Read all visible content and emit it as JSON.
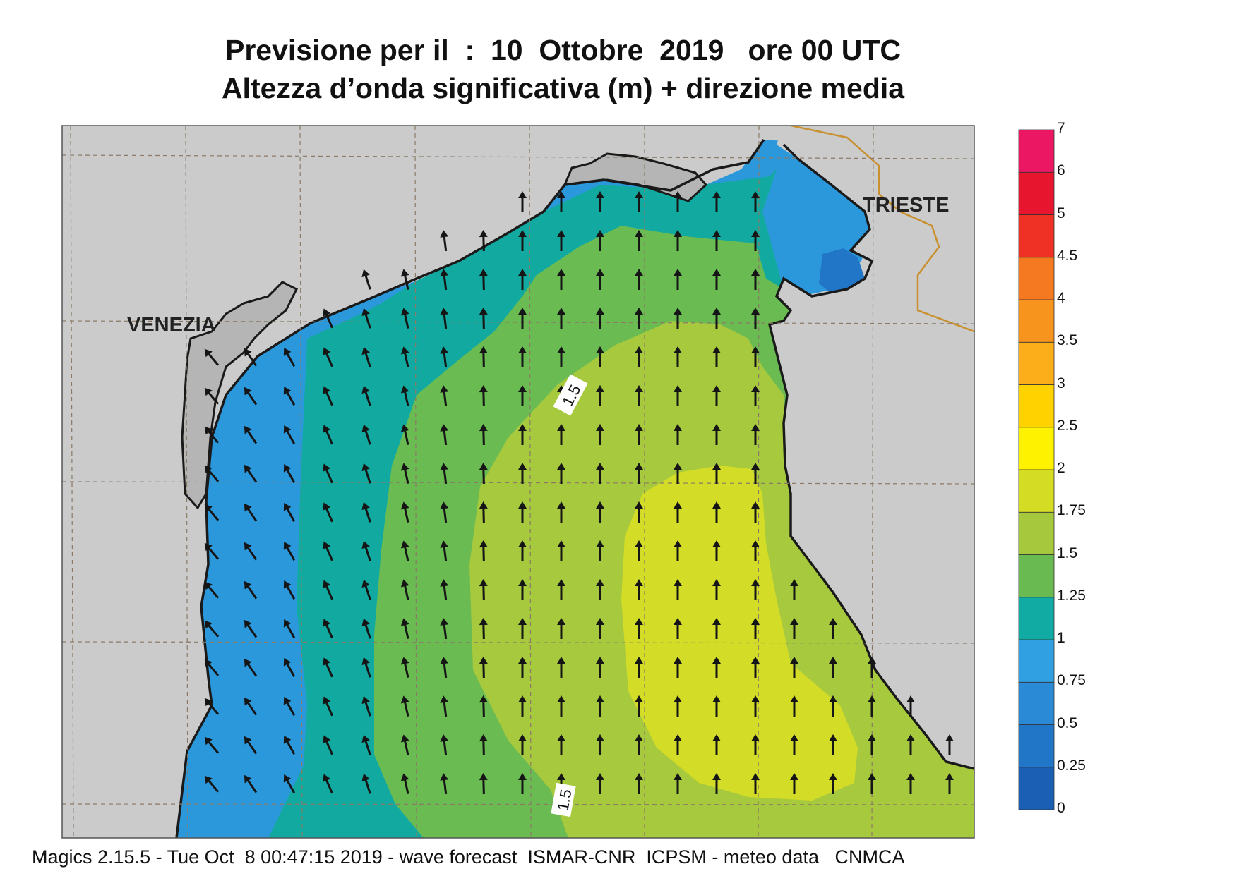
{
  "title": {
    "line1": "Previsione per il  :  10  Ottobre  2019   ore 00 UTC",
    "line2": "Altezza d’onda significativa (m) + direzione media"
  },
  "cities": {
    "venezia": "VENEZIA",
    "trieste": "TRIESTE"
  },
  "contour_labels": [
    "1.5",
    "1.5"
  ],
  "colorbar": {
    "labels": [
      "0",
      "0.25",
      "0.5",
      "0.75",
      "1",
      "1.25",
      "1.5",
      "1.75",
      "2",
      "2.5",
      "3",
      "3.5",
      "4",
      "4.5",
      "5",
      "6",
      "7"
    ],
    "colors": [
      "#1a5fb4",
      "#2176c8",
      "#2a8ad6",
      "#30a0e2",
      "#12aba4",
      "#6aba52",
      "#a6c83c",
      "#d4dc24",
      "#fff200",
      "#ffd200",
      "#fbae1a",
      "#f7941d",
      "#f47920",
      "#ee3124",
      "#e8152f",
      "#ec1763"
    ]
  },
  "sea_colors": {
    "c075": "#2c98dc",
    "c1": "#12aaa0",
    "c125": "#6bbb53",
    "c15": "#a7c93d",
    "c175": "#d3dc26",
    "land": "#cbcbcb",
    "coast": "#1a1a1a",
    "border": "#c8902e"
  },
  "footer": "Magics 2.15.5 - Tue Oct  8 00:47:15 2019 - wave forecast  ISMAR-CNR  ICPSM - meteo data   CNMCA"
}
